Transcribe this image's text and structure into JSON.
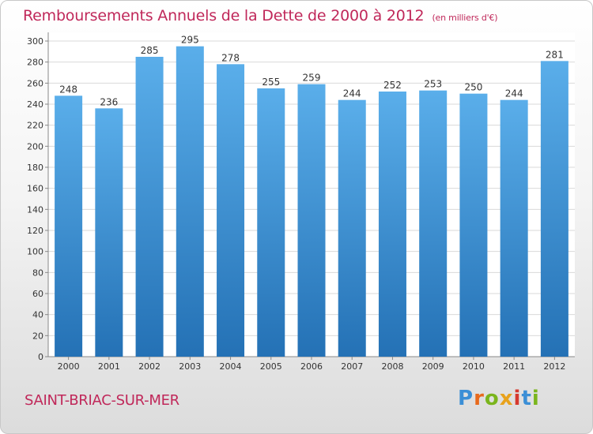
{
  "header": {
    "title": "Remboursements Annuels de la Dette de 2000 à 2012",
    "subtitle": "(en milliers d'€)"
  },
  "footer": {
    "commune": "SAINT-BRIAC-SUR-MER",
    "logo_text": "Proxiti"
  },
  "colors": {
    "title": "#c0285a",
    "bar_top": "#5aaeea",
    "bar_bottom": "#2471b5",
    "grid": "#d9d9d9",
    "axis_text": "#333333"
  },
  "chart_data": {
    "type": "bar",
    "title": "Remboursements Annuels de la Dette de 2000 à 2012",
    "subtitle": "(en milliers d'€)",
    "categories": [
      "2000",
      "2001",
      "2002",
      "2003",
      "2004",
      "2005",
      "2006",
      "2007",
      "2008",
      "2009",
      "2010",
      "2011",
      "2012"
    ],
    "values": [
      248,
      236,
      285,
      295,
      278,
      255,
      259,
      244,
      252,
      253,
      250,
      244,
      281
    ],
    "ylim": [
      0,
      300
    ],
    "ytick_step": 20,
    "grid": true,
    "legend": "none"
  }
}
